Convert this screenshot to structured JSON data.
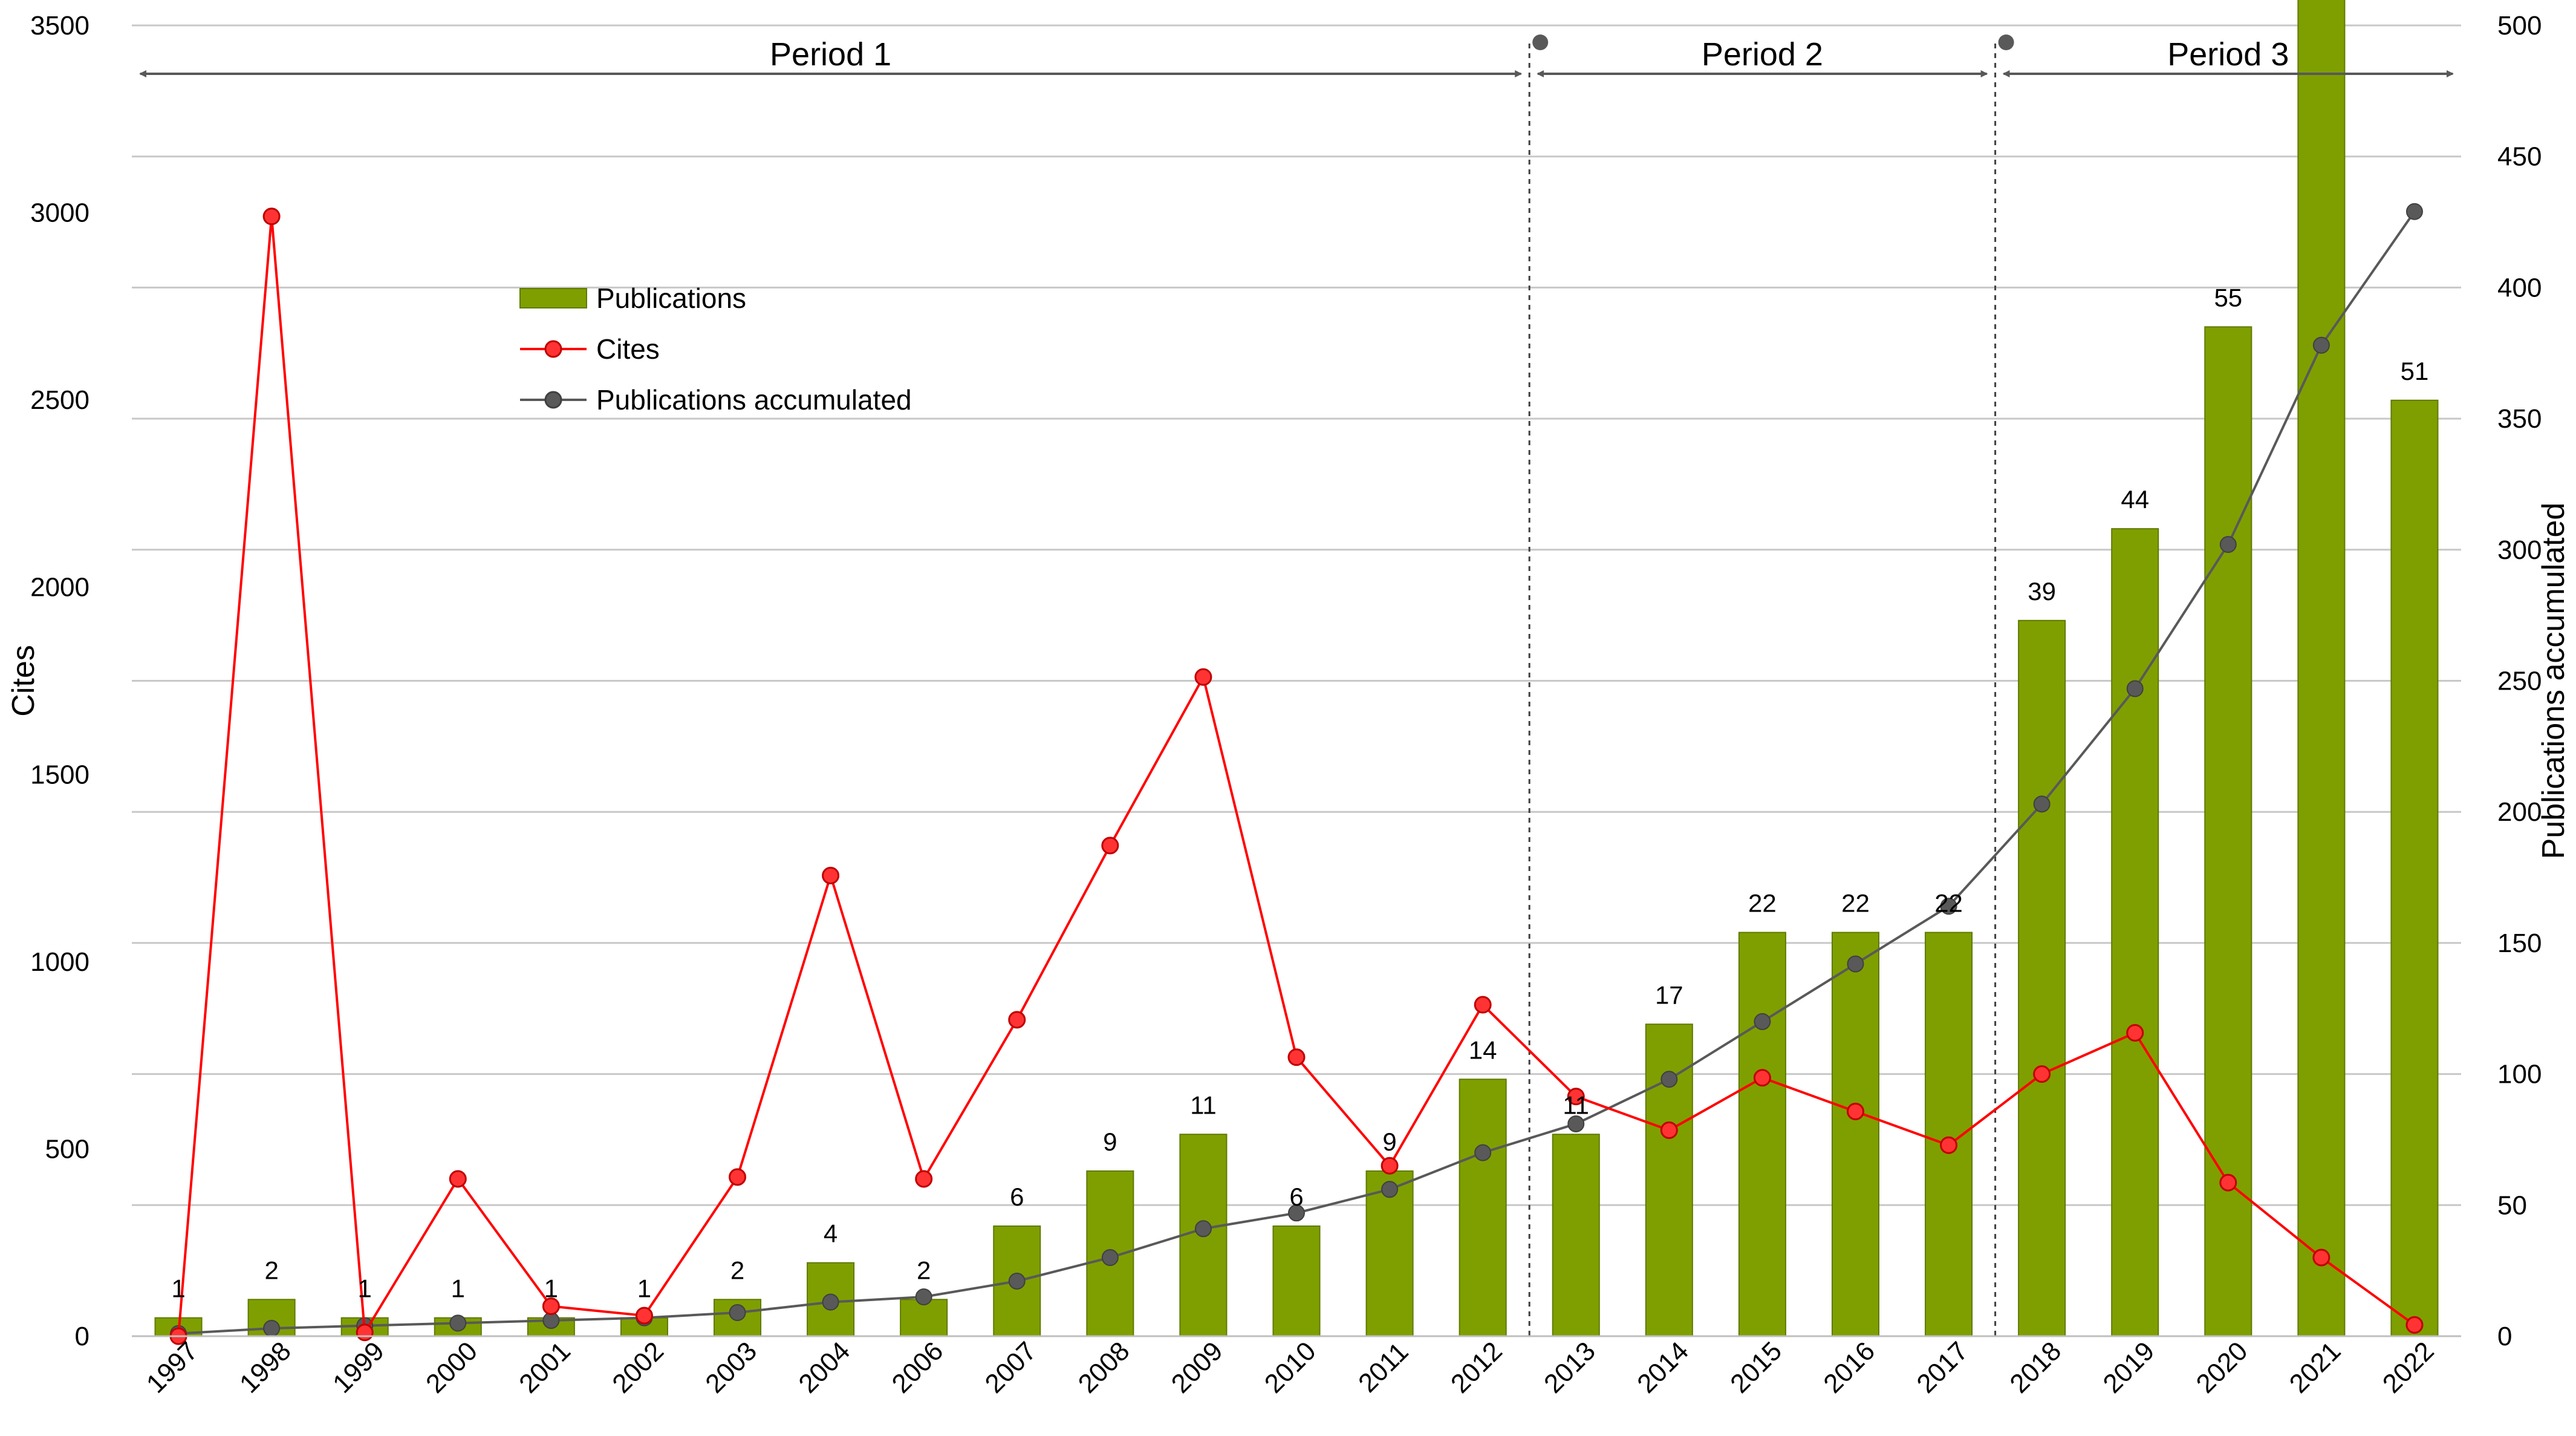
{
  "chart_data": {
    "type": "bar",
    "categories": [
      "1997",
      "1998",
      "1999",
      "2000",
      "2001",
      "2002",
      "2003",
      "2004",
      "2006",
      "2007",
      "2008",
      "2009",
      "2010",
      "2011",
      "2012",
      "2013",
      "2014",
      "2015",
      "2016",
      "2017",
      "2018",
      "2019",
      "2020",
      "2021",
      "2022"
    ],
    "series": [
      {
        "name": "Publications",
        "type": "bar",
        "axis": "left",
        "color": "#7f9f00",
        "scale_to_right_axis_units": 7,
        "values": [
          1,
          2,
          1,
          1,
          1,
          1,
          2,
          4,
          2,
          6,
          9,
          11,
          6,
          9,
          14,
          11,
          17,
          22,
          22,
          22,
          39,
          44,
          55,
          76,
          51
        ]
      },
      {
        "name": "Cites",
        "type": "line",
        "axis": "left",
        "color": "#ff0000",
        "values": [
          0,
          2990,
          10,
          420,
          80,
          55,
          425,
          1230,
          420,
          845,
          1310,
          1760,
          745,
          455,
          885,
          640,
          550,
          690,
          600,
          510,
          700,
          810,
          410,
          210,
          30
        ]
      },
      {
        "name": "Publications accumulated",
        "type": "line",
        "axis": "right",
        "color": "#595959",
        "values": [
          1,
          3,
          4,
          5,
          6,
          7,
          9,
          13,
          15,
          21,
          30,
          41,
          47,
          56,
          70,
          81,
          98,
          120,
          142,
          164,
          203,
          247,
          302,
          378,
          429
        ]
      }
    ],
    "ylabel": "Cites",
    "ylim": [
      0,
      3500
    ],
    "yticks": [
      "0",
      "500",
      "1000",
      "1500",
      "2000",
      "2500",
      "3000",
      "3500"
    ],
    "y2label": "Publications accumulated",
    "y2lim": [
      0,
      500
    ],
    "y2ticks": [
      "0",
      "50",
      "100",
      "150",
      "200",
      "250",
      "300",
      "350",
      "400",
      "450",
      "500"
    ],
    "grid": true,
    "legend_position": "upper-left",
    "periods": [
      {
        "label": "Period 1",
        "from": "1997",
        "to": "2012"
      },
      {
        "label": "Period 2",
        "from": "2013",
        "to": "2017"
      },
      {
        "label": "Period 3",
        "from": "2018",
        "to": "2022"
      }
    ]
  }
}
